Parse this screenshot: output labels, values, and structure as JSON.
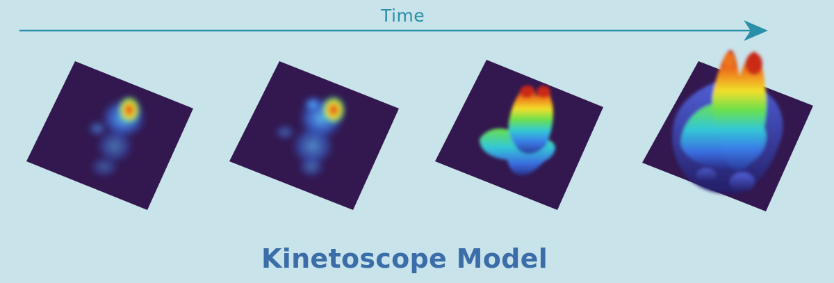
{
  "time_label": "Time",
  "title": "Kinetoscope Model",
  "colors": {
    "background": "#c9e3ea",
    "arrow": "#2a8fa8",
    "title": "#3b6ea8",
    "plane": "#33184f",
    "colormap": [
      "#2a3a9c",
      "#3a7ee8",
      "#33c8d6",
      "#6ae04c",
      "#f2df2a",
      "#f07a1c",
      "#c8261a"
    ]
  },
  "panels": [
    {
      "name": "panel-1",
      "stage": "diffuse-2d-heatmap",
      "peak_level": 0.2
    },
    {
      "name": "panel-2",
      "stage": "blurred-2d-heatmap",
      "peak_level": 0.35
    },
    {
      "name": "panel-3",
      "stage": "emerging-3d-surface",
      "peak_level": 0.65
    },
    {
      "name": "panel-4",
      "stage": "tall-3d-surface",
      "peak_level": 1.0
    }
  ]
}
